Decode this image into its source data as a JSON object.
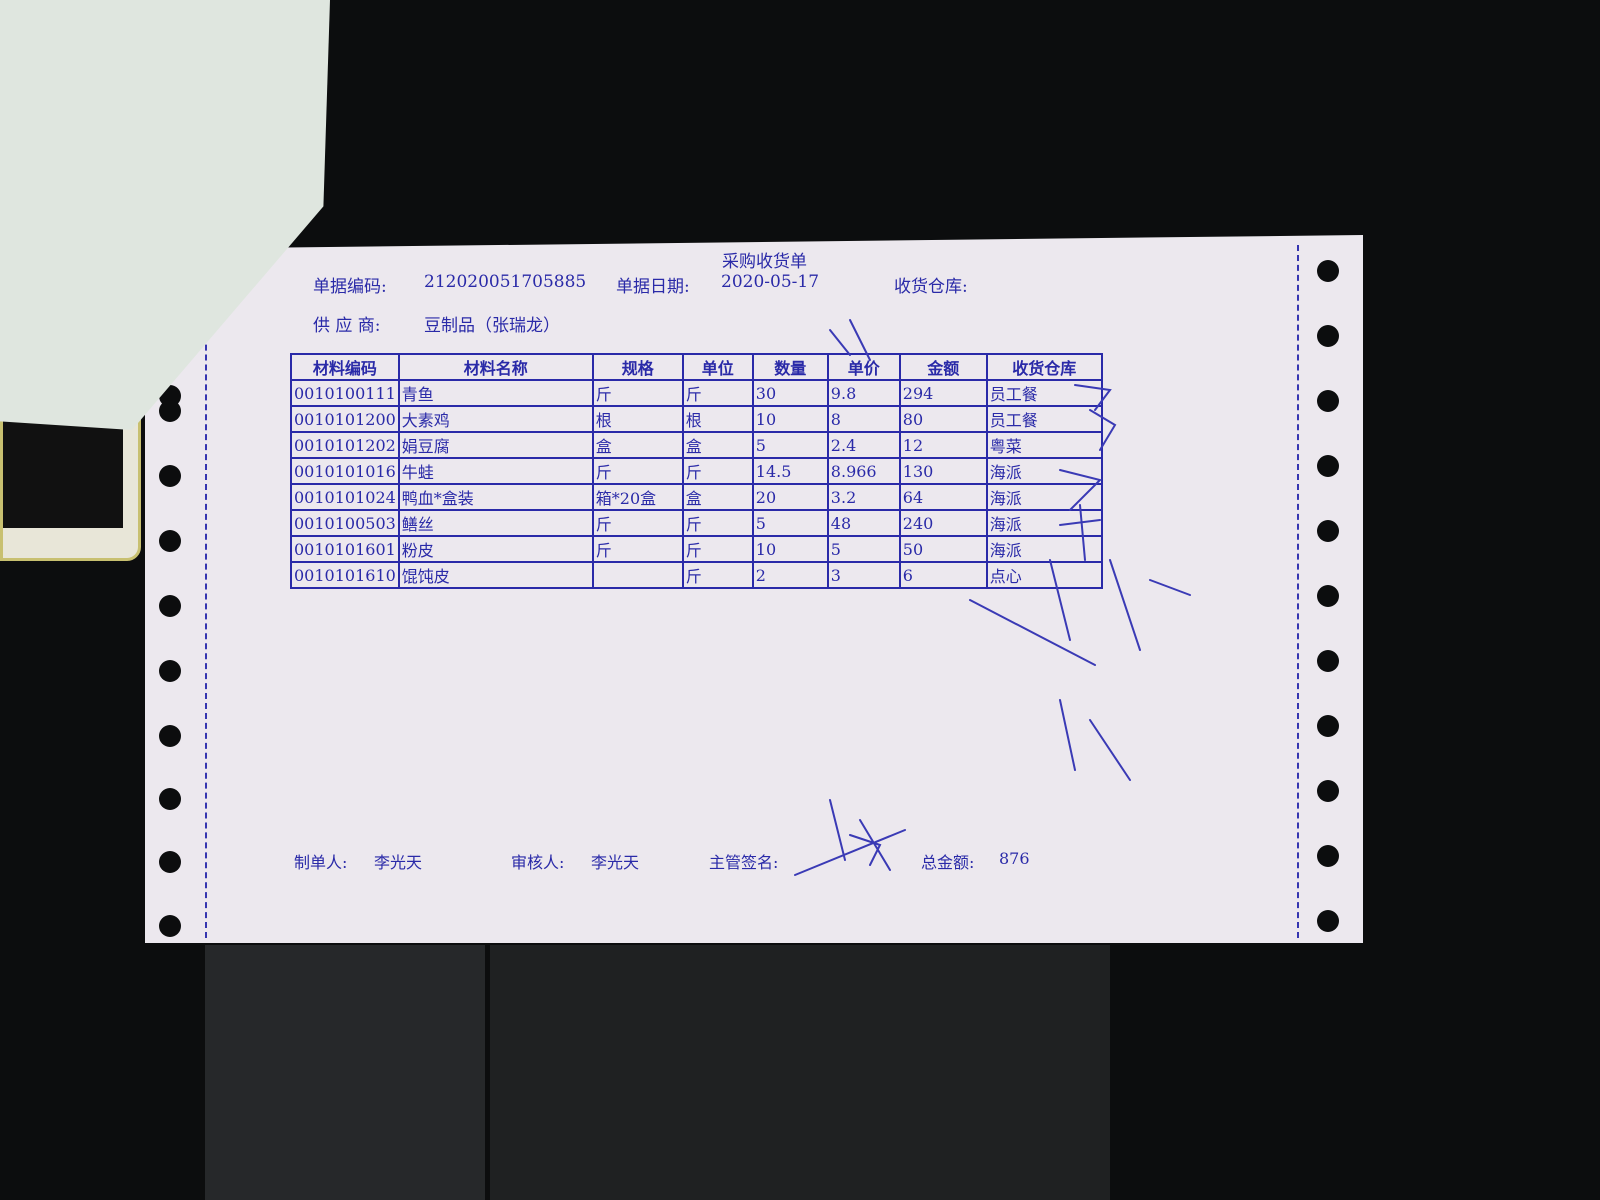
{
  "document": {
    "title": "采购收货单",
    "doc_no_label": "单据编码:",
    "doc_no": "212020051705885",
    "date_label": "单据日期:",
    "date": "2020-05-17",
    "warehouse_label": "收货仓库:",
    "supplier_label": "供 应 商:",
    "supplier": "豆制品（张瑞龙）"
  },
  "table": {
    "headers": [
      "材料编码",
      "材料名称",
      "规格",
      "单位",
      "数量",
      "单价",
      "金额",
      "收货仓库"
    ],
    "rows": [
      [
        "0010100111",
        "青鱼",
        "斤",
        "斤",
        "30",
        "9.8",
        "294",
        "员工餐"
      ],
      [
        "0010101200",
        "大素鸡",
        "根",
        "根",
        "10",
        "8",
        "80",
        "员工餐"
      ],
      [
        "0010101202",
        "娟豆腐",
        "盒",
        "盒",
        "5",
        "2.4",
        "12",
        "粤菜"
      ],
      [
        "0010101016",
        "牛蛙",
        "斤",
        "斤",
        "14.5",
        "8.966",
        "130",
        "海派"
      ],
      [
        "0010101024",
        "鸭血*盒装",
        "箱*20盒",
        "盒",
        "20",
        "3.2",
        "64",
        "海派"
      ],
      [
        "0010100503",
        "鳝丝",
        "斤",
        "斤",
        "5",
        "48",
        "240",
        "海派"
      ],
      [
        "0010101601",
        "粉皮",
        "斤",
        "斤",
        "10",
        "5",
        "50",
        "海派"
      ],
      [
        "0010101610",
        "馄饨皮",
        "",
        "斤",
        "2",
        "3",
        "6",
        "点心"
      ]
    ]
  },
  "footer": {
    "maker_label": "制单人:",
    "maker": "李光天",
    "reviewer_label": "审核人:",
    "reviewer": "李光天",
    "supervisor_label": "主管签名:",
    "total_label": "总金额:",
    "total": "876"
  },
  "colors": {
    "ink": "#2a2aa8",
    "paper": "#ece8ee",
    "background": "#0c0d0e"
  }
}
